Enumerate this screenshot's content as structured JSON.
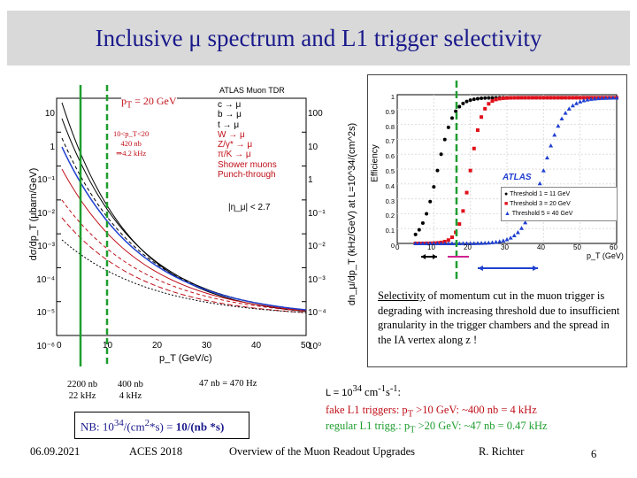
{
  "slide": {
    "title": "Inclusive μ spectrum and L1 trigger selectivity",
    "footer": {
      "date": "06.09.2021",
      "event": "ACES 2018",
      "subject": "Overview of the Muon Readout Upgrades",
      "author": "R. Richter",
      "page": "6"
    }
  },
  "left_plot": {
    "header": "ATLAS Muon TDR",
    "pt_marker": "p_T = 20 GeV",
    "pt_marker_prefix": "p",
    "pt_marker_sub": "T",
    "pt_marker_suffix": " = 20 GeV",
    "range_note": [
      "10<p_T<20",
      "420 nb",
      "⇒4.2 kHz"
    ],
    "legend": [
      "c → μ",
      "b → μ",
      "t → μ",
      "W → μ",
      "Z/γ* → μ",
      "π/K → μ",
      "Shower muons",
      "Punch-through"
    ],
    "eta_cut": "|η_μ| < 2.7",
    "ylabel_left": "dσ/dp_T (μbarn/GeV)",
    "ylabel_right": "dn_μ/dp_T (kHz/GeV) at L=10^34/(cm^2s)",
    "xlabel": "p_T (GeV/c)",
    "x_ticks": [
      "0",
      "10",
      "20",
      "30",
      "40",
      "50"
    ],
    "y_ticks_left": [
      "10",
      "1",
      "10⁻¹",
      "10⁻²",
      "10⁻³",
      "10⁻⁴",
      "10⁻⁵",
      "10⁻⁶"
    ],
    "y_ticks_right": [
      "100",
      "10",
      "1",
      "10⁻¹",
      "10⁻²",
      "10⁻³",
      "10⁻⁴",
      "10⁰"
    ],
    "annotations": {
      "rate_2200_top": "2200 nb",
      "rate_2200_bottom": "22 kHz",
      "rate_400_top": "400 nb",
      "rate_400_bottom": "4 kHz",
      "rate_47": "47 nb = 470 Hz"
    }
  },
  "right_plot": {
    "ylabel": "Efficiency",
    "xlabel": "p_T (GeV)",
    "brand": "ATLAS",
    "x_ticks": [
      "0",
      "10",
      "20",
      "30",
      "40",
      "50",
      "60"
    ],
    "y_ticks": [
      "0",
      "0.1",
      "0.2",
      "0.3",
      "0.4",
      "0.5",
      "0.6",
      "0.7",
      "0.8",
      "0.9",
      "1"
    ],
    "legend": [
      "Threshold 1 = 11 GeV",
      "Threshold 3 = 20 GeV",
      "Threshold 5 = 40 GeV"
    ],
    "series_colors": [
      "#000000",
      "#e0101a",
      "#2040d0"
    ],
    "thresholds": [
      11,
      20,
      40
    ]
  },
  "selectivity_note": {
    "word": "Selectivity",
    "rest": " of momentum cut in the muon trigger is degrading with increasing threshold due to insufficient granularity in the trigger chambers and the spread in the IA vertex along z !"
  },
  "luminosity": {
    "prefix": "L = 10",
    "exp1": "34",
    "mid": " cm",
    "exp2": "-1",
    "s": "s",
    "exp3": "-1",
    "end": ":"
  },
  "fake_line": {
    "label": "fake L1 triggers:  p",
    "sub": "T",
    "rest": "  >10 GeV: ~400 nb = 4 kHz"
  },
  "regular_line": {
    "label": "regular L1 trigg.: p",
    "sub": "T",
    "rest": "  >20 GeV:  ~47 nb = 0.47 kHz"
  },
  "nb_box": {
    "prefix": "NB:  10",
    "exp1": "34",
    "mid": "/(cm",
    "exp2": "2",
    "rest": "*s) = ",
    "bold": "10/(nb *s)"
  },
  "colors": {
    "title": "#1a1a8c",
    "green_marker": "#1e9e2e",
    "pink_marker": "#d02090",
    "blue_marker": "#2040d0",
    "fake_text": "#c0101a",
    "regular_text": "#1e9e2e"
  }
}
